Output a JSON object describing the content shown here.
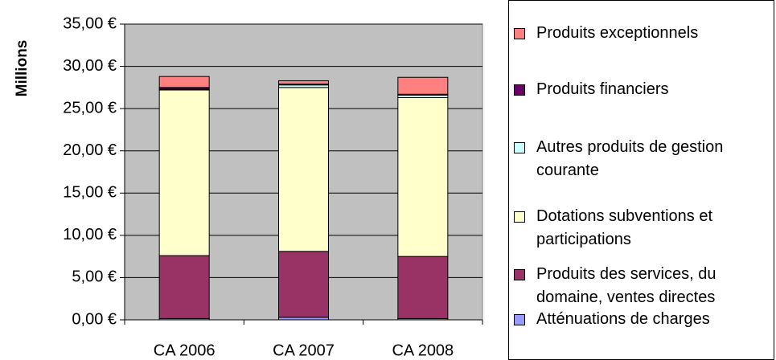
{
  "chart_data": {
    "type": "stacked_bar",
    "y_label": "Millions",
    "categories": [
      "CA 2006",
      "CA 2007",
      "CA 2008"
    ],
    "series": [
      {
        "name": "Atténuations de charges",
        "color": "#9999ff",
        "values": [
          0.15,
          0.3,
          0.15
        ]
      },
      {
        "name": "Produits des services, du domaine, ventes directes",
        "color": "#993366",
        "values": [
          7.45,
          7.8,
          7.35
        ]
      },
      {
        "name": "Dotations subventions et participations",
        "color": "#ffffcc",
        "values": [
          19.6,
          19.4,
          18.8
        ]
      },
      {
        "name": "Autres produits de gestion courante",
        "color": "#ccffff",
        "values": [
          0.1,
          0.3,
          0.3
        ]
      },
      {
        "name": "Produits financiers",
        "color": "#660066",
        "values": [
          0.2,
          0.1,
          0.1
        ]
      },
      {
        "name": "Produits exceptionnels",
        "color": "#ff8080",
        "values": [
          1.3,
          0.4,
          2.0
        ]
      }
    ],
    "ylim": [
      0,
      35
    ],
    "yticks": [
      {
        "value": 0,
        "label": "0,00 €"
      },
      {
        "value": 5,
        "label": "5,00 €"
      },
      {
        "value": 10,
        "label": "10,00 €"
      },
      {
        "value": 15,
        "label": "15,00 €"
      },
      {
        "value": 20,
        "label": "20,00 €"
      },
      {
        "value": 25,
        "label": "25,00 €"
      },
      {
        "value": 30,
        "label": "30,00 €"
      },
      {
        "value": 35,
        "label": "35,00 €"
      }
    ],
    "grid": true,
    "legend": "right"
  }
}
